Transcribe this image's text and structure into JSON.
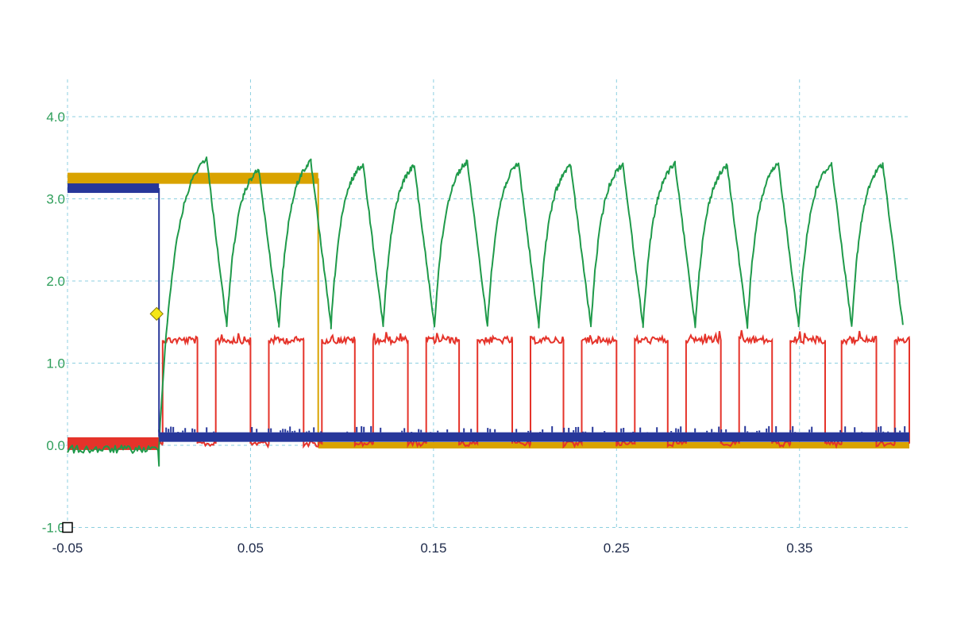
{
  "chart_data": {
    "type": "line",
    "title": "",
    "xlabel": "",
    "ylabel": "",
    "xlim": [
      -0.05,
      0.41
    ],
    "ylim": [
      -1.0,
      4.4
    ],
    "x_ticks": [
      -0.05,
      0.05,
      0.15,
      0.25,
      0.35
    ],
    "x_tick_labels": [
      "-0.05",
      "0.05",
      "0.15",
      "0.25",
      "0.35"
    ],
    "y_ticks": [
      -1.0,
      0.0,
      1.0,
      2.0,
      3.0,
      4.0
    ],
    "y_tick_labels": [
      "-1.0",
      "0.0",
      "1.0",
      "2.0",
      "3.0",
      "4.0"
    ],
    "grid": true,
    "colors": {
      "green": "#1f9a4a",
      "red": "#e5332a",
      "orange": "#d9a300",
      "blue": "#27379a",
      "grid": "#8ccfe0",
      "trigger_marker": "#f5e616"
    },
    "trigger": {
      "x": 0.0,
      "y": 1.6
    },
    "markers": {
      "ground_reference": {
        "x": -0.05,
        "y": -1.0
      }
    },
    "series": [
      {
        "color": "green",
        "description_points": "sawtooth charge/discharge",
        "segments": [
          {
            "x": [
              -0.05,
              0.0
            ],
            "y": [
              -0.05,
              -0.05
            ]
          },
          {
            "x": [
              0.0,
              0.027
            ],
            "y": [
              0.0,
              3.5
            ]
          }
        ],
        "period_x": [
          0.0285,
          0.057,
          0.0855,
          0.114,
          0.142,
          0.171,
          0.199,
          0.2275,
          0.256,
          0.2845,
          0.313,
          0.341,
          0.37,
          0.398
        ],
        "peak_y": [
          3.5,
          3.35,
          3.45,
          3.42,
          3.4,
          3.45,
          3.43,
          3.4,
          3.42,
          3.42,
          3.4,
          3.42,
          3.42,
          3.42
        ],
        "trough_y": 1.45
      },
      {
        "color": "red",
        "description_points": "pulse train",
        "low_y": 0.02,
        "high_y": 1.28,
        "pulses": [
          [
            0.002,
            0.021
          ],
          [
            0.031,
            0.05
          ],
          [
            0.06,
            0.079
          ],
          [
            0.089,
            0.107
          ],
          [
            0.117,
            0.136
          ],
          [
            0.146,
            0.164
          ],
          [
            0.174,
            0.193
          ],
          [
            0.203,
            0.221
          ],
          [
            0.231,
            0.25
          ],
          [
            0.26,
            0.278
          ],
          [
            0.288,
            0.307
          ],
          [
            0.317,
            0.335
          ],
          [
            0.345,
            0.364
          ],
          [
            0.373,
            0.392
          ],
          [
            0.402,
            0.41
          ]
        ]
      },
      {
        "color": "orange",
        "description_points": "step from high to low",
        "x": [
          -0.05,
          0.087,
          0.087,
          0.41
        ],
        "y": [
          3.25,
          3.25,
          0.0,
          0.0
        ]
      },
      {
        "color": "blue",
        "description_points": "step from high to low at trigger",
        "x": [
          -0.05,
          0.0,
          0.0,
          0.41
        ],
        "y": [
          3.13,
          3.13,
          0.1,
          0.12
        ]
      }
    ]
  }
}
